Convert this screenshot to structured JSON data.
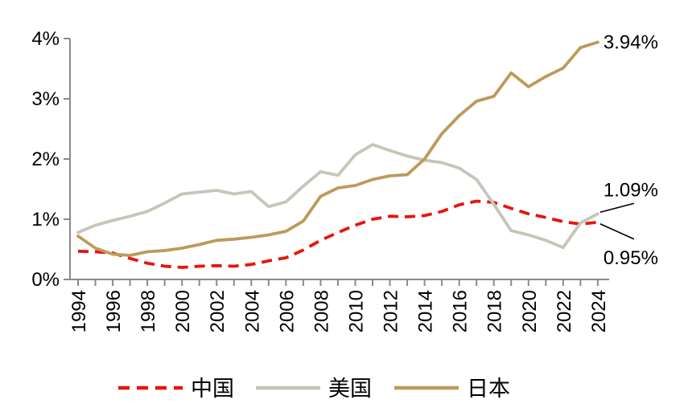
{
  "chart_data": {
    "type": "line",
    "title": "",
    "xlabel": "",
    "ylabel": "",
    "x": [
      1994,
      1995,
      1996,
      1997,
      1998,
      1999,
      2000,
      2001,
      2002,
      2003,
      2004,
      2005,
      2006,
      2007,
      2008,
      2009,
      2010,
      2011,
      2012,
      2013,
      2014,
      2015,
      2016,
      2017,
      2018,
      2019,
      2020,
      2021,
      2022,
      2023,
      2024
    ],
    "x_tick_labels": [
      "1994",
      "1996",
      "1998",
      "2000",
      "2002",
      "2004",
      "2006",
      "2008",
      "2010",
      "2012",
      "2014",
      "2016",
      "2018",
      "2020",
      "2022",
      "2024"
    ],
    "y_tick_labels": [
      "0%",
      "1%",
      "2%",
      "3%",
      "4%"
    ],
    "ylim": [
      0,
      4
    ],
    "grid": false,
    "legend_position": "bottom",
    "series": [
      {
        "id": "china",
        "name": "中国",
        "color": "#e8140c",
        "style": "dashed",
        "values": [
          0.47,
          0.46,
          0.44,
          0.35,
          0.27,
          0.22,
          0.2,
          0.22,
          0.23,
          0.22,
          0.25,
          0.31,
          0.36,
          0.49,
          0.65,
          0.78,
          0.9,
          1.0,
          1.05,
          1.04,
          1.06,
          1.13,
          1.24,
          1.3,
          1.28,
          1.18,
          1.09,
          1.03,
          0.96,
          0.92,
          0.95
        ]
      },
      {
        "id": "usa",
        "name": "美国",
        "color": "#c6c5b9",
        "style": "solid",
        "values": [
          0.78,
          0.9,
          0.98,
          1.05,
          1.13,
          1.27,
          1.42,
          1.45,
          1.48,
          1.42,
          1.46,
          1.21,
          1.29,
          1.55,
          1.79,
          1.73,
          2.07,
          2.24,
          2.14,
          2.05,
          1.98,
          1.94,
          1.85,
          1.66,
          1.25,
          0.81,
          0.74,
          0.65,
          0.53,
          0.94,
          1.09
        ]
      },
      {
        "id": "japan",
        "name": "日本",
        "color": "#bd9a5a",
        "style": "solid",
        "values": [
          0.72,
          0.52,
          0.42,
          0.4,
          0.46,
          0.48,
          0.52,
          0.58,
          0.65,
          0.67,
          0.7,
          0.74,
          0.8,
          0.97,
          1.38,
          1.52,
          1.56,
          1.66,
          1.72,
          1.74,
          2.0,
          2.42,
          2.72,
          2.96,
          3.04,
          3.43,
          3.2,
          3.37,
          3.51,
          3.85,
          3.94
        ]
      }
    ],
    "annotations": [
      {
        "id": "japan-end",
        "text": "3.94%",
        "series": "japan",
        "year": 2024,
        "value": 3.94,
        "leader": false
      },
      {
        "id": "usa-end",
        "text": "1.09%",
        "series": "usa",
        "year": 2024,
        "value": 1.09,
        "leader": true
      },
      {
        "id": "china-end",
        "text": "0.95%",
        "series": "china",
        "year": 2024,
        "value": 0.95,
        "leader": true
      }
    ]
  },
  "colors": {
    "background": "#ffffff",
    "axis": "#8a8a8a",
    "text": "#000000",
    "leader_line": "#000000"
  }
}
